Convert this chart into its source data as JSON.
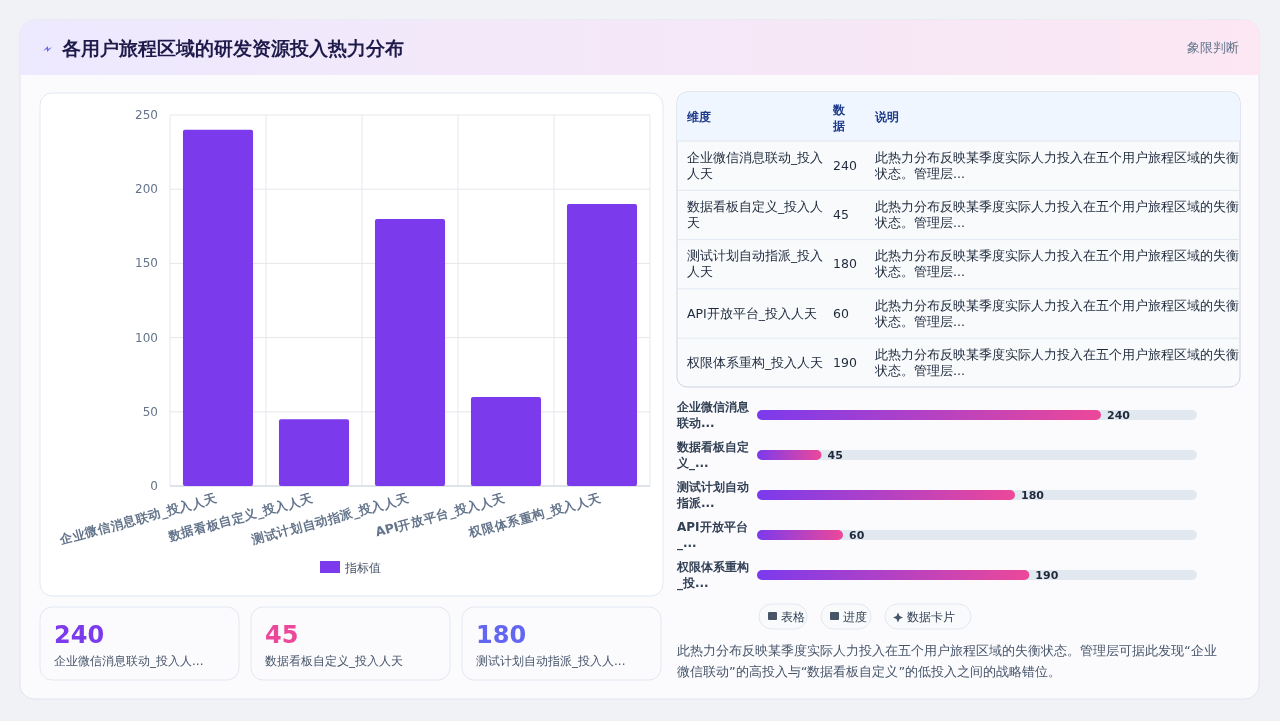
{
  "chart_data": [
    {
      "type": "bar",
      "title": "各用户旅程区域的研发资源投入热力分布",
      "categories": [
        "企业微信消息联动_投入人天",
        "数据看板自定义_投入人天",
        "测试计划自动指派_投入人天",
        "API开放平台_投入人天",
        "权限体系重构_投入人天"
      ],
      "series": [
        {
          "name": "指标值",
          "color": "#7c3aed",
          "values": [
            240,
            45,
            180,
            60,
            190
          ]
        }
      ],
      "ylim": [
        0,
        250
      ],
      "yticks": [
        0,
        50,
        100,
        150,
        200,
        250
      ],
      "grid": true,
      "legend": "bottom"
    },
    {
      "type": "other",
      "categories": [
        "企业微信消息联动_投入人天",
        "数据看板自定义_投入人天",
        "测试计划自动指派_投入人天",
        "API开放平台_投入人天",
        "权限体系重构_投入人天"
      ],
      "values": [
        240,
        45,
        180,
        60,
        190
      ],
      "data_labels": true,
      "annotations": [
        "维度",
        "数据",
        "说明",
        "此热力分布反映某季度实际人力投入在五个用户旅程区域的失衡状态。管理层...",
        "此热力分布反映某季度实际人力投入在五个用户旅程区域的失衡状态。管理层...",
        "此热力分布反映某季度实际人力投入在五个用户旅程区域的失衡状态。管理层...",
        "此热力分布反映某季度实际人力投入在五个用户旅程区域的失衡状态。管理层...",
        "此热力分布反映某季度实际人力投入在五个用户旅程区域的失衡状态。管理层..."
      ]
    },
    {
      "type": "bar",
      "orientation": "horizontal",
      "categories": [
        "企业微信消息联动...",
        "数据看板自定义_...",
        "测试计划自动指派...",
        "API开放平台_...",
        "权限体系重构_投..."
      ],
      "values": [
        240,
        45,
        180,
        60,
        190
      ],
      "color": "#7c3aed",
      "tick_labels": "y",
      "data_labels": true
    },
    {
      "type": "other",
      "categories": [
        "企业微信消息联动_投入人...",
        "数据看板自定义_投入人天",
        "测试计划自动指派_投入人..."
      ],
      "values": [
        240,
        45,
        180
      ],
      "colors": [
        "#7c3aed",
        "#ec4899",
        "#6366f1"
      ],
      "data_labels": true
    },
    {
      "type": "other",
      "annotations": [
        "象限判断",
        "表格",
        "进度",
        "数据卡片",
        "此热力分布反映某季度实际人力投入在五个用户旅程区域的失衡状态。管理层可据此发现“企业微信联动”的高投入与“数据看板自定义”的低投入之间的战略错位。"
      ]
    }
  ]
}
